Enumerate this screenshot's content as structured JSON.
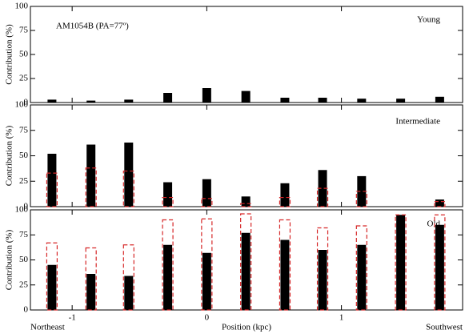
{
  "chart_data": [
    {
      "type": "bar",
      "title": "AM1054B (PA=77º)",
      "label": "Young",
      "ylabel": "Contribution (%)",
      "x": [
        -1.15,
        -0.86,
        -0.58,
        -0.29,
        0,
        0.29,
        0.58,
        0.86,
        1.15,
        1.44,
        1.73
      ],
      "xlim": [
        -1.31,
        1.9
      ],
      "ylim": [
        0,
        100
      ],
      "yticks": [
        0,
        25,
        50,
        75,
        100
      ],
      "series": [
        {
          "color": "#000000",
          "values": [
            3,
            2,
            3,
            10,
            15,
            12,
            5,
            5,
            4,
            4,
            6
          ]
        }
      ]
    },
    {
      "type": "bar",
      "label": "Intermediate",
      "ylabel": "Contribution (%)",
      "x": [
        -1.15,
        -0.86,
        -0.58,
        -0.29,
        0,
        0.29,
        0.58,
        0.86,
        1.15,
        1.44,
        1.73
      ],
      "xlim": [
        -1.31,
        1.9
      ],
      "ylim": [
        0,
        100
      ],
      "yticks": [
        0,
        25,
        50,
        75,
        100
      ],
      "series": [
        {
          "color": "#000000",
          "values": [
            52,
            61,
            63,
            24,
            27,
            10,
            23,
            36,
            30,
            0,
            7
          ]
        },
        {
          "color": "#d62728",
          "dashed": true,
          "values": [
            33,
            38,
            35,
            9,
            8,
            3,
            9,
            18,
            15,
            0,
            5
          ]
        }
      ]
    },
    {
      "type": "bar",
      "label": "Old",
      "ylabel": "Contribution (%)",
      "xlabel": "Position (kpc)",
      "annotations": [
        "Northeast",
        "Southwest"
      ],
      "x": [
        -1.15,
        -0.86,
        -0.58,
        -0.29,
        0,
        0.29,
        0.58,
        0.86,
        1.15,
        1.44,
        1.73
      ],
      "xlim": [
        -1.31,
        1.9
      ],
      "ylim": [
        0,
        100
      ],
      "yticks": [
        0,
        25,
        50,
        75,
        100
      ],
      "xticks": [
        -1,
        0,
        1
      ],
      "series": [
        {
          "color": "#000000",
          "values": [
            45,
            36,
            34,
            65,
            57,
            77,
            70,
            60,
            65,
            95,
            85
          ]
        },
        {
          "color": "#d62728",
          "dashed": true,
          "values": [
            67,
            62,
            65,
            90,
            91,
            96,
            90,
            82,
            84,
            95,
            95
          ]
        }
      ]
    }
  ]
}
